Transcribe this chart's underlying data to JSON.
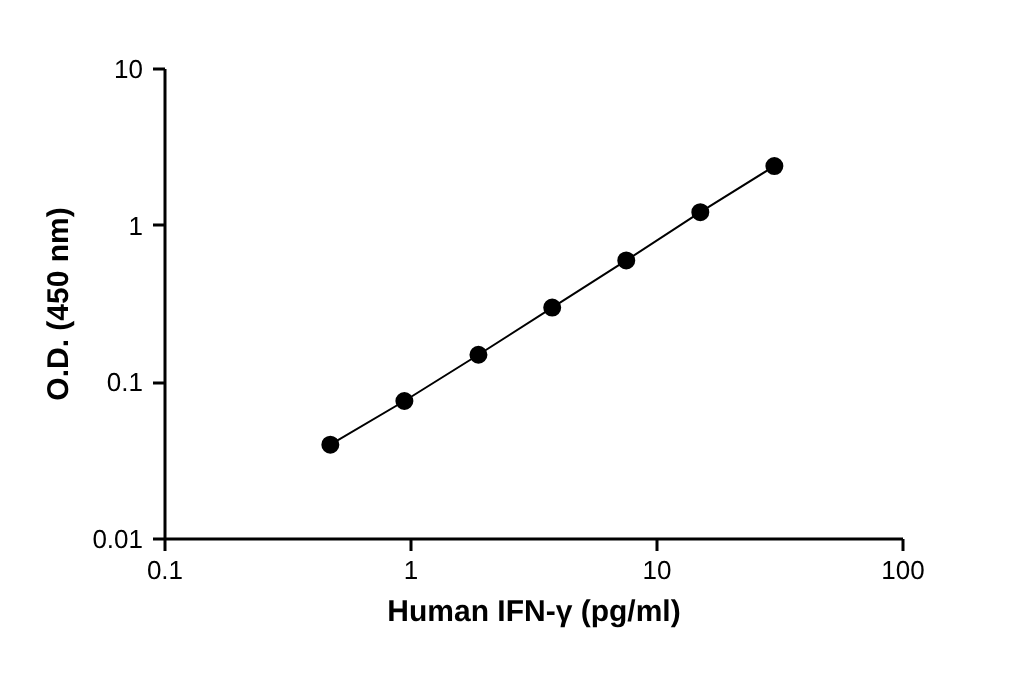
{
  "chart_data": {
    "type": "line",
    "xlabel": "Human IFN-γ (pg/ml)",
    "ylabel": "O.D. (450 nm)",
    "log": "xy",
    "x": [
      0.47,
      0.94,
      1.88,
      3.75,
      7.5,
      15,
      30
    ],
    "series": [
      {
        "color": "#000000",
        "values": [
          0.04,
          0.076,
          0.15,
          0.3,
          0.6,
          1.22,
          2.4
        ]
      }
    ],
    "xlim": [
      0.1,
      100
    ],
    "ylim": [
      0.01,
      10
    ],
    "xticks": [
      0.1,
      1,
      10,
      100
    ],
    "yticks": [
      0.01,
      0.1,
      1,
      10
    ],
    "marker": "circle",
    "line_style": "solid",
    "grid": false
  }
}
